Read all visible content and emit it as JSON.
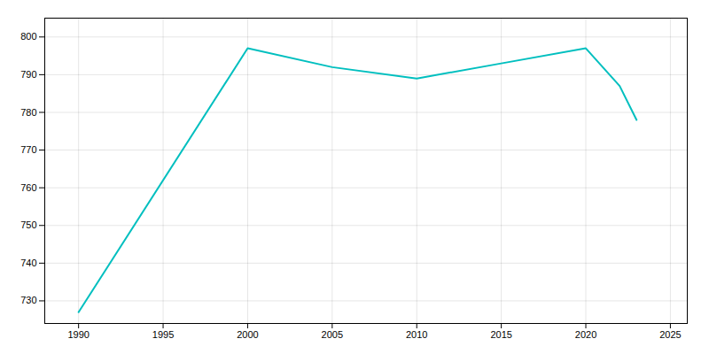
{
  "chart_data": {
    "type": "line",
    "x": [
      1990,
      2000,
      2005,
      2010,
      2015,
      2020,
      2022,
      2023
    ],
    "values": [
      727,
      797,
      792,
      789,
      793,
      797,
      787,
      778
    ],
    "color": "#00BFBF",
    "xlim": [
      1988,
      2026
    ],
    "ylim": [
      724,
      805
    ],
    "xticks": [
      1990,
      1995,
      2000,
      2005,
      2010,
      2015,
      2020,
      2025
    ],
    "yticks": [
      730,
      740,
      750,
      760,
      770,
      780,
      790,
      800
    ],
    "grid": true
  }
}
